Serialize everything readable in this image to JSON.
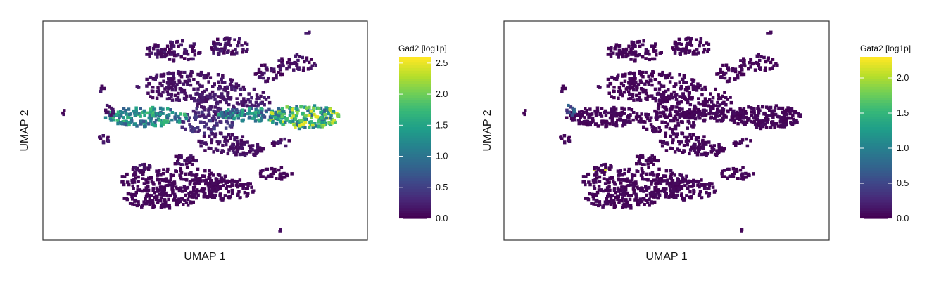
{
  "chart_data": [
    {
      "type": "scatter",
      "title": "",
      "xlabel": "UMAP 1",
      "ylabel": "UMAP 2",
      "colorbar": {
        "title": "Gad2 [log1p]",
        "range": [
          0.0,
          2.6
        ],
        "ticks": [
          "0.0",
          "0.5",
          "1.0",
          "1.5",
          "2.0",
          "2.5"
        ],
        "tick_values": [
          0.0,
          0.5,
          1.0,
          1.5,
          2.0,
          2.5
        ],
        "colormap": "viridis"
      },
      "grid": false,
      "description_of_marks": "hexbin UMAP embedding; highest Gad2 expression in the two central horizontal bands"
    },
    {
      "type": "scatter",
      "title": "",
      "xlabel": "UMAP 1",
      "ylabel": "UMAP 2",
      "colorbar": {
        "title": "Gata2 [log1p]",
        "range": [
          0.0,
          2.3
        ],
        "ticks": [
          "0.0",
          "0.5",
          "1.0",
          "1.5",
          "2.0"
        ],
        "tick_values": [
          0.0,
          0.5,
          1.0,
          1.5,
          2.0
        ],
        "colormap": "viridis"
      },
      "grid": false,
      "description_of_marks": "same hexbin UMAP embedding; Gata2 near 0 almost everywhere with a few higher bins on the small left cluster"
    }
  ],
  "colors": {
    "viridis": [
      "#440154",
      "#482878",
      "#3e4989",
      "#31688e",
      "#26828e",
      "#1f9e89",
      "#35b779",
      "#6ece58",
      "#b5de2b",
      "#fde725"
    ],
    "frame": "#333333"
  }
}
